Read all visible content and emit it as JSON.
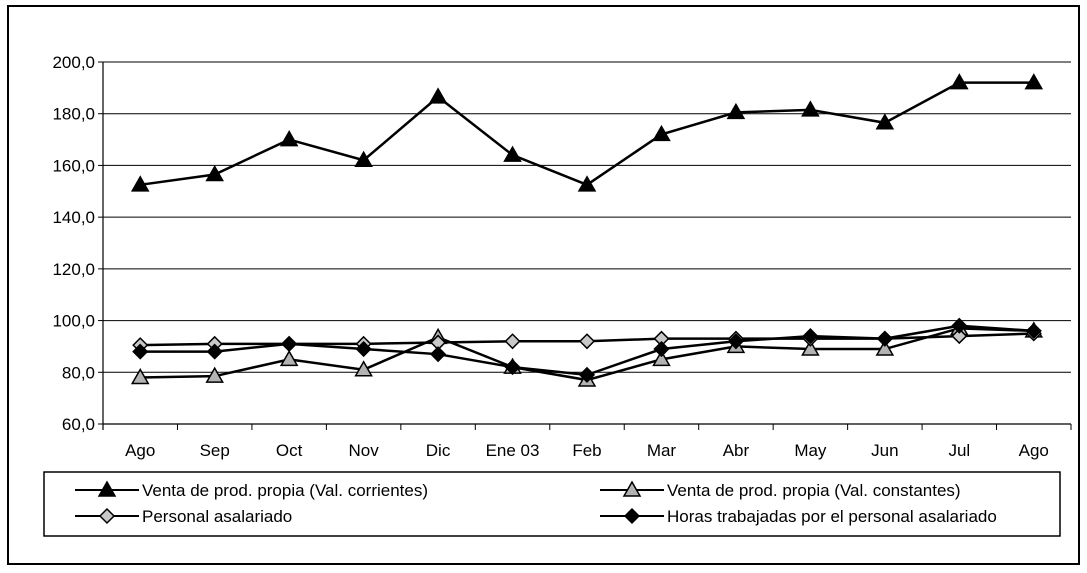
{
  "chart_data": {
    "type": "line",
    "title": "",
    "xlabel": "",
    "ylabel": "",
    "categories": [
      "Ago",
      "Sep",
      "Oct",
      "Nov",
      "Dic",
      "Ene 03",
      "Feb",
      "Mar",
      "Abr",
      "May",
      "Jun",
      "Jul",
      "Ago"
    ],
    "ylim": [
      60,
      200
    ],
    "yticks": [
      "60,0",
      "80,0",
      "100,0",
      "120,0",
      "140,0",
      "160,0",
      "180,0",
      "200,0"
    ],
    "grid": true,
    "legend_position": "bottom",
    "series": [
      {
        "name": "Venta de prod. propia (Val. corrientes)",
        "marker": "triangle-filled",
        "color": "#000000",
        "values": [
          152.5,
          156.5,
          170.0,
          162.0,
          186.5,
          164.0,
          152.5,
          172.0,
          180.5,
          181.5,
          176.5,
          192.0,
          192.0
        ]
      },
      {
        "name": "Venta de prod. propia (Val. constantes)",
        "marker": "triangle-gray",
        "color": "#000000",
        "values": [
          78.0,
          78.5,
          85.0,
          81.0,
          93.5,
          82.0,
          77.0,
          85.0,
          90.0,
          89.0,
          89.0,
          97.0,
          96.0
        ]
      },
      {
        "name": "Personal asalariado",
        "marker": "diamond-gray",
        "color": "#000000",
        "values": [
          90.5,
          91.0,
          91.0,
          91.0,
          91.5,
          92.0,
          92.0,
          93.0,
          93.0,
          93.0,
          93.0,
          94.0,
          95.0
        ]
      },
      {
        "name": "Horas trabajadas por el personal asalariado",
        "marker": "diamond-filled",
        "color": "#000000",
        "values": [
          88.0,
          88.0,
          91.0,
          89.0,
          87.0,
          82.0,
          79.0,
          89.0,
          92.0,
          94.0,
          93.0,
          98.0,
          96.0
        ]
      }
    ]
  }
}
